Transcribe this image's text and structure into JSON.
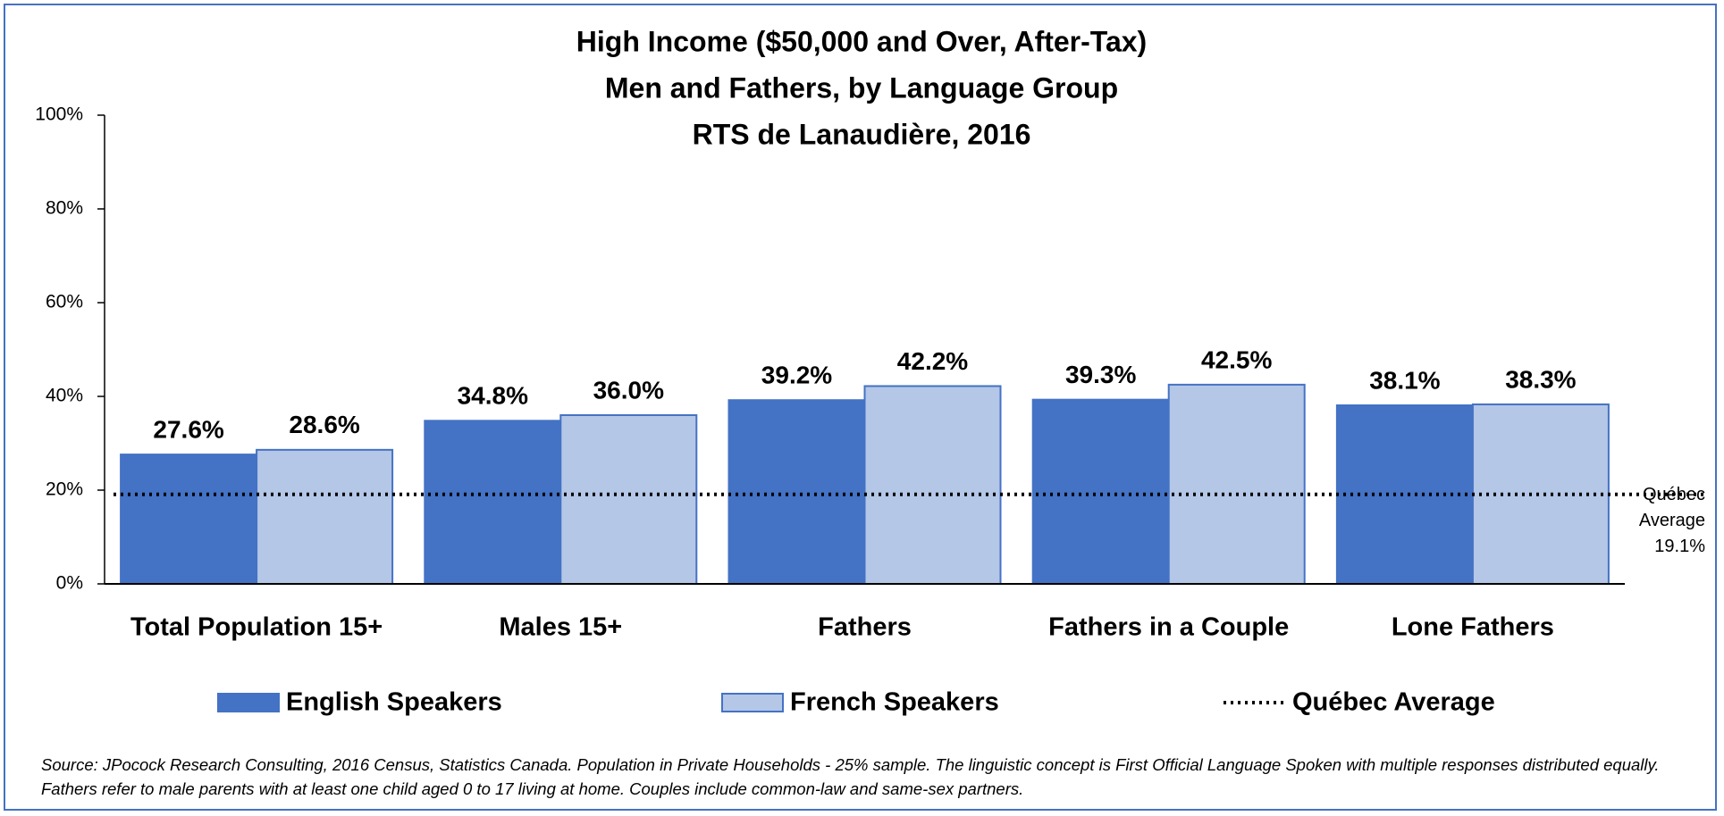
{
  "chart_data": {
    "type": "bar",
    "title": [
      "High Income ($50,000 and Over, After-Tax)",
      "Men and Fathers, by Language Group",
      "RTS de Lanaudière, 2016"
    ],
    "categories": [
      "Total Population 15+",
      "Males 15+",
      "Fathers",
      "Fathers in a Couple",
      "Lone Fathers"
    ],
    "series": [
      {
        "name": "English Speakers",
        "color": "#4472c4",
        "values": [
          27.6,
          34.8,
          39.2,
          39.3,
          38.1
        ],
        "value_labels": [
          "27.6%",
          "34.8%",
          "39.2%",
          "39.3%",
          "38.1%"
        ]
      },
      {
        "name": "French Speakers",
        "color": "#b4c7e7",
        "values": [
          28.6,
          36.0,
          42.2,
          42.5,
          38.3
        ],
        "value_labels": [
          "28.6%",
          "36.0%",
          "42.2%",
          "42.5%",
          "38.3%"
        ]
      }
    ],
    "reference_line": {
      "name": "Québec Average",
      "value": 19.1,
      "value_label": "19.1%"
    },
    "ylim": [
      0,
      100
    ],
    "yticks": [
      {
        "value": 0,
        "label": "0%"
      },
      {
        "value": 20,
        "label": "20%"
      },
      {
        "value": 40,
        "label": "40%"
      },
      {
        "value": 60,
        "label": "60%"
      },
      {
        "value": 80,
        "label": "80%"
      },
      {
        "value": 100,
        "label": "100%"
      }
    ],
    "grid": false,
    "legend": "bottom",
    "source": "Source: JPocock Research Consulting, 2016 Census, Statistics Canada. Population in Private Households - 25% sample. The linguistic concept is First Official Language Spoken with multiple responses distributed equally. Fathers refer to male parents with at least one child aged 0 to 17 living at home. Couples include common-law and same-sex partners."
  }
}
